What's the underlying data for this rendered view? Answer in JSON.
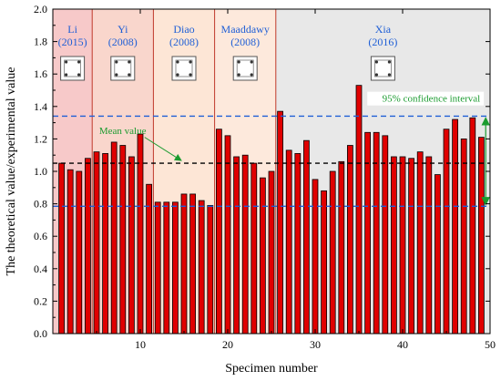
{
  "chart_data": {
    "type": "bar",
    "xlabel": "Specimen number",
    "ylabel": "The theoretical value/experimental value",
    "xlim": [
      0,
      50
    ],
    "ylim": [
      0.0,
      2.0
    ],
    "x_ticks": [
      "10",
      "20",
      "30",
      "40",
      "50"
    ],
    "y_ticks": [
      "0.0",
      "0.2",
      "0.4",
      "0.6",
      "0.8",
      "1.0",
      "1.2",
      "1.4",
      "1.6",
      "1.8",
      "2.0"
    ],
    "values": [
      1.05,
      1.01,
      1.0,
      1.08,
      1.12,
      1.11,
      1.18,
      1.16,
      1.09,
      1.23,
      0.92,
      0.81,
      0.81,
      0.81,
      0.86,
      0.86,
      0.82,
      0.79,
      1.26,
      1.22,
      1.09,
      1.1,
      1.05,
      0.96,
      1.0,
      1.37,
      1.13,
      1.11,
      1.19,
      0.95,
      0.88,
      1.0,
      1.06,
      1.16,
      1.53,
      1.24,
      1.24,
      1.22,
      1.09,
      1.09,
      1.08,
      1.12,
      1.09,
      0.98,
      1.26,
      1.32,
      1.2,
      1.33,
      1.21
    ],
    "bar_color": "#e00000",
    "mean_value": 1.05,
    "confidence_upper": 1.34,
    "confidence_lower": 0.785,
    "mean_label": "Mean value",
    "confidence_label": "95% confidence interval",
    "groups": [
      {
        "name": "Li",
        "year": "(2015)",
        "start": 0,
        "end": 4.5,
        "color": "#f7c9c9"
      },
      {
        "name": "Yi",
        "year": "(2008)",
        "start": 4.5,
        "end": 11.5,
        "color": "#f9d6cc"
      },
      {
        "name": "Diao",
        "year": "(2008)",
        "start": 11.5,
        "end": 18.5,
        "color": "#fde6d6"
      },
      {
        "name": "Maaddawy",
        "year": "(2008)",
        "start": 18.5,
        "end": 25.5,
        "color": "#fde9dc"
      },
      {
        "name": "Xia",
        "year": "(2016)",
        "start": 25.5,
        "end": 50,
        "color": "#e8e8e8"
      }
    ],
    "colors": {
      "group_divider": "#c0392b",
      "mean_line": "#000000",
      "confidence_line": "#1f5fd6",
      "annotation": "#1a9b2f",
      "group_text": "#1f5fd6"
    }
  }
}
